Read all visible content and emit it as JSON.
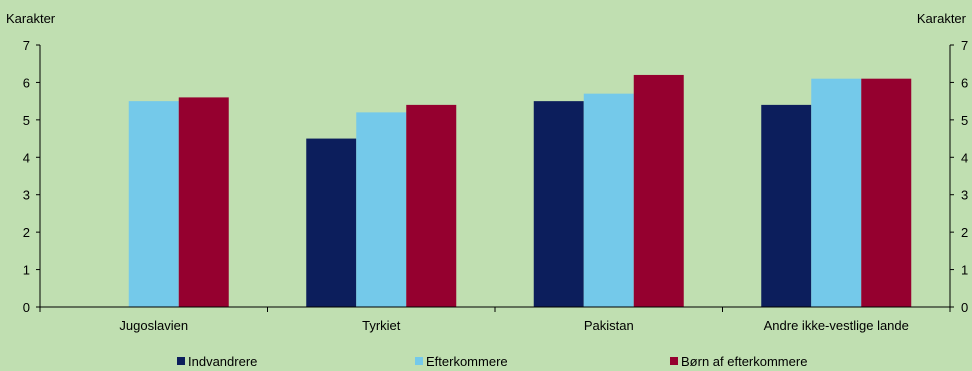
{
  "chart_data": {
    "type": "bar",
    "y_label_left": "Karakter",
    "y_label_right": "Karakter",
    "ylim": [
      0,
      7
    ],
    "yticks": [
      "0",
      "1",
      "2",
      "3",
      "4",
      "5",
      "6",
      "7"
    ],
    "grid": false,
    "legend_position": "bottom",
    "categories": [
      "Jugoslavien",
      "Tyrkiet",
      "Pakistan",
      "Andre ikke-vestlige lande"
    ],
    "series": [
      {
        "name": "Indvandrere",
        "color": "#0C1E5C",
        "values": [
          null,
          4.5,
          5.5,
          5.4
        ]
      },
      {
        "name": "Efterkommere",
        "color": "#74C9EA",
        "values": [
          5.5,
          5.2,
          5.7,
          6.1
        ]
      },
      {
        "name": "Børn af efterkommere",
        "color": "#95002F",
        "values": [
          5.6,
          5.4,
          6.2,
          6.1
        ]
      }
    ]
  },
  "colors": {
    "background": "#C0DFB1",
    "axis": "#000000"
  }
}
